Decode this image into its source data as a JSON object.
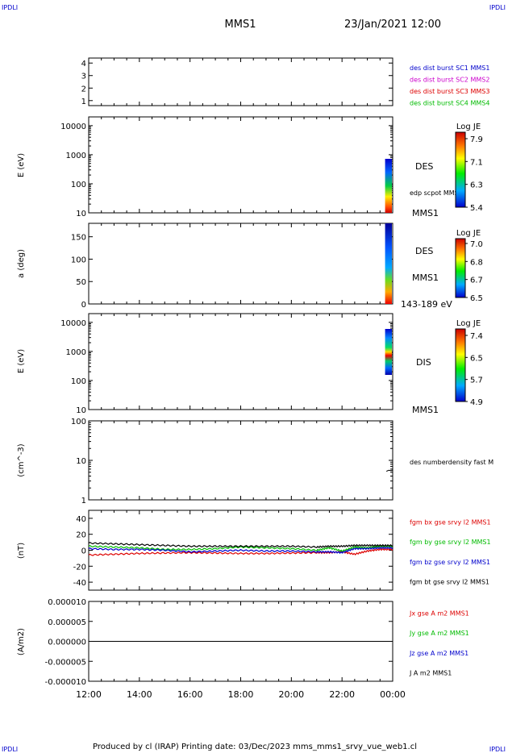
{
  "header": {
    "corner_tl": "IPDLI",
    "corner_tr": "IPDLI",
    "title": "MMS1",
    "datetime": "23/Jan/2021 12:00"
  },
  "footer": {
    "text": "Produced by cl (IRAP)   Printing date: 03/Dec/2023   mms_mms1_srvy_vue_web1.cl",
    "corner_bl": "IPDLI",
    "corner_br": "IPDLI"
  },
  "time_axis": {
    "ticks": [
      "12:00",
      "14:00",
      "16:00",
      "18:00",
      "20:00",
      "22:00",
      "00:00"
    ],
    "range_hours": [
      12,
      24
    ]
  },
  "colors": {
    "blue": "#0000cc",
    "magenta": "#cc00cc",
    "red": "#dd0000",
    "green": "#00bb00",
    "black": "#000000"
  },
  "chart_data": [
    {
      "type": "line",
      "panel": "burst",
      "ylim": [
        0.6,
        4.4
      ],
      "yticks": [
        "1",
        "2",
        "3",
        "4"
      ],
      "legend": [
        {
          "label": "des dist burst SC1 MMS1",
          "color": "#0000cc"
        },
        {
          "label": "des dist burst SC2 MMS2",
          "color": "#cc00cc"
        },
        {
          "label": "des dist burst SC3 MMS3",
          "color": "#dd0000"
        },
        {
          "label": "des dist burst SC4 MMS4",
          "color": "#00bb00"
        }
      ]
    },
    {
      "type": "heatmap",
      "panel": "des_energy",
      "ylabel": "E (eV)",
      "yscale": "log",
      "ylim": [
        10,
        20000
      ],
      "yticks": [
        "10",
        "100",
        "1000",
        "10000"
      ],
      "labels": [
        "DES",
        "edp scpot MMS1",
        "MMS1"
      ],
      "colorbar": {
        "title": "Log JE",
        "ticks": [
          "7.9",
          "7.1",
          "6.3",
          "5.4"
        ],
        "range": [
          5.4,
          7.9
        ]
      },
      "data_start_hour": 23.7
    },
    {
      "type": "heatmap",
      "panel": "des_pitch",
      "ylabel": "a (deg)",
      "ylim": [
        0,
        180
      ],
      "yticks": [
        "0",
        "50",
        "100",
        "150"
      ],
      "labels": [
        "DES",
        "MMS1",
        "143-189 eV"
      ],
      "colorbar": {
        "title": "Log JE",
        "ticks": [
          "7.0",
          "6.8",
          "6.7",
          "6.5"
        ],
        "range": [
          6.5,
          7.0
        ]
      },
      "data_start_hour": 23.7
    },
    {
      "type": "heatmap",
      "panel": "dis_energy",
      "ylabel": "E (eV)",
      "yscale": "log",
      "ylim": [
        10,
        20000
      ],
      "yticks": [
        "10",
        "100",
        "1000",
        "10000"
      ],
      "labels": [
        "DIS",
        "MMS1"
      ],
      "colorbar": {
        "title": "Log JE",
        "ticks": [
          "7.4",
          "6.5",
          "5.7",
          "4.9"
        ],
        "range": [
          4.9,
          7.4
        ]
      },
      "data_start_hour": 23.7
    },
    {
      "type": "line",
      "panel": "density",
      "ylabel": "(cm^-3)",
      "yscale": "log",
      "ylim": [
        1,
        100
      ],
      "yticks": [
        "1",
        "10",
        "100"
      ],
      "legend": [
        {
          "label": "des numberdensity fast M",
          "color": "#000000"
        }
      ],
      "series": [
        {
          "name": "des numberdensity fast M",
          "x": [
            23.75,
            23.85,
            23.95,
            24.0
          ],
          "y": [
            5.3,
            5.6,
            5.5,
            5.7
          ]
        }
      ]
    },
    {
      "type": "line",
      "panel": "fgm",
      "ylabel": "(nT)",
      "ylim": [
        -50,
        50
      ],
      "yticks": [
        "-40",
        "-20",
        "0",
        "20",
        "40"
      ],
      "legend": [
        {
          "label": "fgm bx gse srvy l2 MMS1",
          "color": "#dd0000"
        },
        {
          "label": "fgm by gse srvy l2 MMS1",
          "color": "#00bb00"
        },
        {
          "label": "fgm bz gse srvy l2 MMS1",
          "color": "#0000cc"
        },
        {
          "label": "fgm bt gse srvy l2 MMS1",
          "color": "#000000"
        }
      ],
      "series": [
        {
          "name": "fgm bx gse srvy l2 MMS1",
          "color": "#dd0000",
          "x": [
            12,
            13,
            14,
            15,
            16,
            17,
            18,
            19,
            20,
            21,
            21.5,
            22,
            22.5,
            23,
            23.5,
            24
          ],
          "y": [
            -6,
            -5,
            -4,
            -3.5,
            -3,
            -3.5,
            -4,
            -4,
            -3.5,
            -3,
            -3,
            -2,
            -5,
            -1,
            1,
            1
          ]
        },
        {
          "name": "fgm by gse srvy l2 MMS1",
          "color": "#00bb00",
          "x": [
            12,
            13,
            14,
            15,
            16,
            17,
            18,
            19,
            20,
            21,
            21.5,
            22,
            22.5,
            23,
            23.5,
            24
          ],
          "y": [
            5,
            4,
            3,
            1,
            1,
            2,
            4,
            3,
            2,
            0,
            3,
            -1,
            4,
            3,
            5,
            5
          ]
        },
        {
          "name": "fgm bz gse srvy l2 MMS1",
          "color": "#0000cc",
          "x": [
            12,
            13,
            14,
            15,
            16,
            17,
            18,
            19,
            20,
            21,
            21.5,
            22,
            22.5,
            23,
            23.5,
            24
          ],
          "y": [
            2,
            1,
            1,
            0,
            -2,
            -1,
            0,
            -1,
            -1,
            -2,
            -2,
            -3,
            2,
            2,
            3,
            3
          ]
        },
        {
          "name": "fgm bt gse srvy l2 MMS1",
          "color": "#000000",
          "x": [
            12,
            13,
            14,
            15,
            16,
            17,
            18,
            19,
            20,
            21,
            21.5,
            22,
            22.5,
            23,
            23.5,
            24
          ],
          "y": [
            9,
            8,
            7,
            6,
            5,
            5,
            5,
            5,
            5,
            4,
            5,
            5,
            6,
            6,
            6,
            6
          ]
        }
      ]
    },
    {
      "type": "line",
      "panel": "current",
      "ylabel": "(A/m2)",
      "ylim": [
        -1e-05,
        1e-05
      ],
      "yticks": [
        "-0.000010",
        "-0.000005",
        "0.000000",
        "0.000005",
        "0.000010"
      ],
      "legend": [
        {
          "label": "Jx gse A m2 MMS1",
          "color": "#dd0000"
        },
        {
          "label": "Jy gse A m2 MMS1",
          "color": "#00bb00"
        },
        {
          "label": "Jz gse A m2 MMS1",
          "color": "#0000cc"
        },
        {
          "label": "J A m2 MMS1",
          "color": "#000000"
        }
      ],
      "series": [
        {
          "name": "J A m2 MMS1",
          "x": [
            12,
            24
          ],
          "y": [
            0,
            0
          ]
        }
      ]
    }
  ]
}
